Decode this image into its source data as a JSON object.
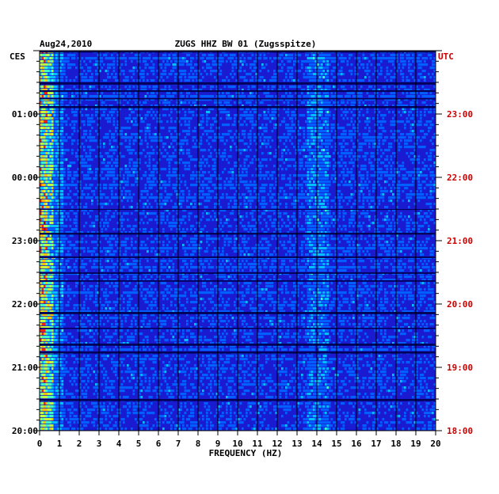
{
  "chart_data": {
    "type": "heatmap",
    "title": "ZUGS HHZ BW 01 (Zugsspitze)",
    "date": "Aug24,2010",
    "xlabel": "FREQUENCY (HZ)",
    "xlim": [
      0,
      20
    ],
    "x_ticks": [
      "0",
      "1",
      "2",
      "3",
      "4",
      "5",
      "6",
      "7",
      "8",
      "9",
      "10",
      "11",
      "12",
      "13",
      "14",
      "15",
      "16",
      "17",
      "18",
      "19",
      "20"
    ],
    "left_axis_label": "CES",
    "right_axis_label": "UTC",
    "left_time_labels": [
      "01:00",
      "00:00",
      "23:00",
      "22:00",
      "21:00",
      "20:00"
    ],
    "right_time_labels": [
      "23:00",
      "22:00",
      "21:00",
      "20:00",
      "19:00",
      "18:00"
    ],
    "time_rows_per_hour": 6,
    "colorscale": [
      "#000080",
      "#0000e0",
      "#0060ff",
      "#00c0ff",
      "#40ffc0",
      "#c0ff40",
      "#ffc000",
      "#ff2000",
      "#c00000"
    ],
    "colors": {
      "background_noise": "#1a1ad0",
      "left_label_color": "#000000",
      "right_label_color": "#cc0000",
      "grid_color": "#000000"
    },
    "notes_energy": [
      {
        "band_hz": [
          0.1,
          0.6
        ],
        "level": "high"
      },
      {
        "band_hz": [
          13.5,
          14.5
        ],
        "level": "moderate"
      }
    ]
  }
}
